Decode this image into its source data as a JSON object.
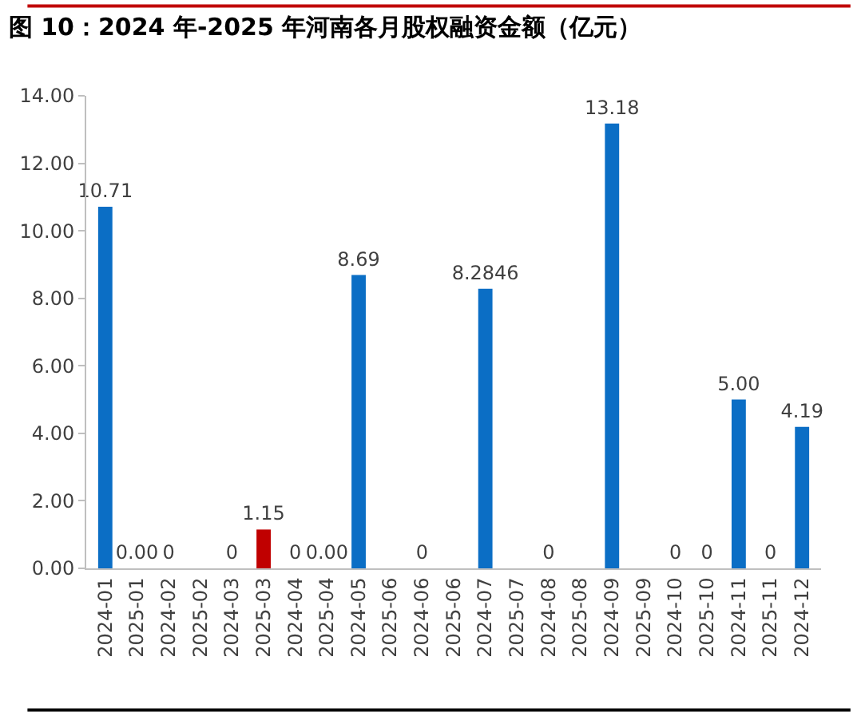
{
  "chart_data": {
    "type": "bar",
    "title": "图 10：2024 年-2025 年河南各月股权融资金额（亿元）",
    "categories": [
      "2024-01",
      "2025-01",
      "2024-02",
      "2025-02",
      "2024-03",
      "2025-03",
      "2024-04",
      "2025-04",
      "2024-05",
      "2025-06",
      "2024-06",
      "2025-06",
      "2024-07",
      "2025-07",
      "2024-08",
      "2025-08",
      "2024-09",
      "2025-09",
      "2024-10",
      "2025-10",
      "2024-11",
      "2025-11",
      "2024-12"
    ],
    "values": [
      10.71,
      0,
      0,
      null,
      0,
      1.15,
      0,
      0,
      8.69,
      null,
      0,
      null,
      8.2846,
      null,
      0,
      null,
      13.18,
      null,
      0,
      0,
      5.0,
      0,
      4.19
    ],
    "value_labels": [
      "10.71",
      "0.00",
      "0",
      null,
      "0",
      "1.15",
      "0",
      "0.00",
      "8.69",
      null,
      "0",
      null,
      "8.2846",
      null,
      "0",
      null,
      "13.18",
      null,
      "0",
      "0",
      "5.00",
      "0",
      "4.19"
    ],
    "colors": [
      "#0b6ec5",
      "#0b6ec5",
      "#0b6ec5",
      "#0b6ec5",
      "#0b6ec5",
      "#c00000",
      "#0b6ec5",
      "#0b6ec5",
      "#0b6ec5",
      "#0b6ec5",
      "#0b6ec5",
      "#0b6ec5",
      "#0b6ec5",
      "#0b6ec5",
      "#0b6ec5",
      "#0b6ec5",
      "#0b6ec5",
      "#0b6ec5",
      "#0b6ec5",
      "#0b6ec5",
      "#0b6ec5",
      "#0b6ec5",
      "#0b6ec5"
    ],
    "ylim": [
      0,
      14
    ],
    "yticks": [
      {
        "value": 0,
        "label": "0.00"
      },
      {
        "value": 2,
        "label": "2.00"
      },
      {
        "value": 4,
        "label": "4.00"
      },
      {
        "value": 6,
        "label": "6.00"
      },
      {
        "value": 8,
        "label": "8.00"
      },
      {
        "value": 10,
        "label": "10.00"
      },
      {
        "value": 12,
        "label": "12.00"
      },
      {
        "value": 14,
        "label": "14.00"
      }
    ],
    "ylabel": null
  }
}
